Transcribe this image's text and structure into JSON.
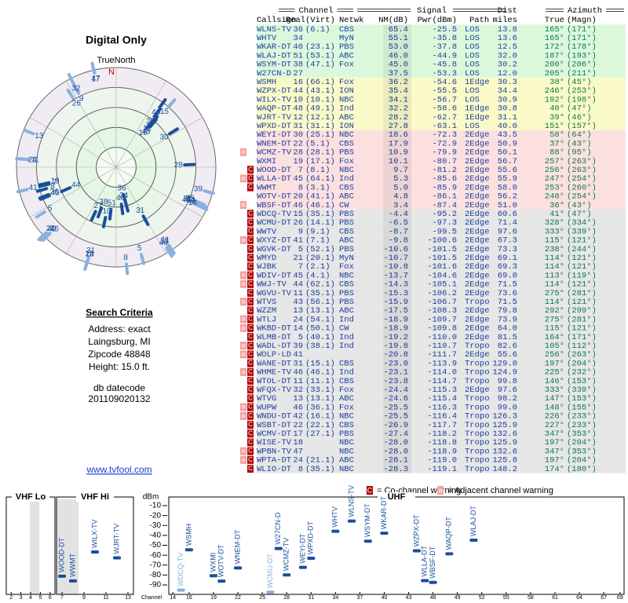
{
  "header": {
    "title": "Digital Only",
    "north_label": "TrueNorth",
    "north_marker": "N"
  },
  "polar": {
    "rlim": [
      110,
      -25
    ]
  },
  "search": {
    "heading": "Search Criteria",
    "lines": [
      "Address: exact",
      "Laingsburg, MI",
      "Zipcode 48848",
      "Height: 15.0 ft."
    ],
    "datecode_label": "db datecode",
    "datecode": "201109020132",
    "link": "www.tvfool.com"
  },
  "table": {
    "group_headers": [
      "Channel",
      "Signal",
      "Azimuth"
    ],
    "dist_top": "Dist",
    "columns": [
      "Callsign",
      "Real",
      "(Virt)",
      "Netwk",
      "NM(dB)",
      "Pwr(dBm)",
      "Path",
      "miles",
      "True",
      "(Magn)"
    ],
    "weak_bg": "#e6e6e6",
    "rows": [
      {
        "warn": [],
        "bg": "#dcf8dc",
        "cells": [
          "WLNS-TV",
          "36",
          "(6.1)",
          "CBS",
          "65.4",
          "-25.5",
          "LOS",
          "13.8",
          "165°",
          "(171°)"
        ]
      },
      {
        "warn": [],
        "bg": "#dcf8dc",
        "cells": [
          "WHTV",
          "34",
          null,
          "MyN",
          "55.1",
          "-35.8",
          "LOS",
          "13.6",
          "165°",
          "(171°)"
        ]
      },
      {
        "warn": [],
        "bg": "#dcf8dc",
        "cells": [
          "WKAR-DT",
          "40",
          "(23.1)",
          "PBS",
          "53.0",
          "-37.8",
          "LOS",
          "12.5",
          "172°",
          "(178°)"
        ]
      },
      {
        "warn": [],
        "bg": "#dcf8dc",
        "cells": [
          "WLAJ-DT",
          "51",
          "(53.1)",
          "ABC",
          "46.0",
          "-44.9",
          "LOS",
          "32.0",
          "187°",
          "(193°)"
        ]
      },
      {
        "warn": [],
        "bg": "#dcf8dc",
        "cells": [
          "WSYM-DT",
          "38",
          "(47.1)",
          "Fox",
          "45.0",
          "-45.8",
          "LOS",
          "30.2",
          "200°",
          "(206°)"
        ]
      },
      {
        "warn": [],
        "bg": "#dcf8dc",
        "cells": [
          "W27CN-D",
          "27",
          null,
          null,
          "37.5",
          "-53.3",
          "LOS",
          "12.0",
          "205°",
          "(211°)"
        ]
      },
      {
        "warn": [],
        "bg": "#fafac8",
        "cells": [
          "WSMH",
          "16",
          "(66.1)",
          "Fox",
          "36.2",
          "-54.6",
          "1Edge",
          "30.3",
          "38°",
          "(45°)"
        ]
      },
      {
        "warn": [],
        "bg": "#fafac8",
        "cells": [
          "WZPX-DT",
          "44",
          "(43.1)",
          "ION",
          "35.4",
          "-55.5",
          "LOS",
          "34.4",
          "246°",
          "(253°)"
        ]
      },
      {
        "warn": [],
        "bg": "#fafac8",
        "cells": [
          "WILX-TV",
          "10",
          "(10.1)",
          "NBC",
          "34.1",
          "-56.7",
          "LOS",
          "30.9",
          "192°",
          "(198°)"
        ]
      },
      {
        "warn": [],
        "bg": "#fafac8",
        "cells": [
          "WAQP-DT",
          "48",
          "(49.1)",
          "Ind",
          "32.2",
          "-58.6",
          "1Edge",
          "30.8",
          "40°",
          "(47°)"
        ]
      },
      {
        "warn": [],
        "bg": "#fafac8",
        "cells": [
          "WJRT-TV",
          "12",
          "(12.1)",
          "ABC",
          "28.2",
          "-62.7",
          "1Edge",
          "31.1",
          "39°",
          "(46°)"
        ]
      },
      {
        "warn": [],
        "bg": "#fafac8",
        "cells": [
          "WPXD-DT",
          "31",
          "(31.1)",
          "ION",
          "27.8",
          "-63.1",
          "LOS",
          "40.0",
          "151°",
          "(157°)"
        ]
      },
      {
        "warn": [],
        "bg": "#fce0e0",
        "cells": [
          "WEYI-DT",
          "30",
          "(25.1)",
          "NBC",
          "18.6",
          "-72.3",
          "2Edge",
          "43.5",
          "58°",
          "(64°)"
        ]
      },
      {
        "warn": [],
        "bg": "#fce0e0",
        "cells": [
          "WNEM-DT",
          "22",
          "(5.1)",
          "CBS",
          "17.9",
          "-72.9",
          "2Edge",
          "50.9",
          "37°",
          "(43°)"
        ]
      },
      {
        "warn": [
          "a"
        ],
        "bg": "#fce0e0",
        "cells": [
          "WCMZ-TV",
          "28",
          "(28.1)",
          "PBS",
          "10.9",
          "-79.9",
          "2Edge",
          "50.1",
          "88°",
          "(95°)"
        ]
      },
      {
        "warn": [],
        "bg": "#fce0e0",
        "cells": [
          "WXMI",
          "19",
          "(17.1)",
          "Fox",
          "10.1",
          "-80.7",
          "2Edge",
          "56.7",
          "257°",
          "(263°)"
        ]
      },
      {
        "warn": [
          "C"
        ],
        "bg": "#fce0e0",
        "cells": [
          "WOOD-DT",
          "7",
          "(8.1)",
          "NBC",
          "9.7",
          "-81.2",
          "2Edge",
          "55.6",
          "256°",
          "(263°)"
        ]
      },
      {
        "warn": [
          "a",
          "C"
        ],
        "bg": "#fce0e0",
        "cells": [
          "WLLA-DT",
          "45",
          "(64.1)",
          "Ind",
          "5.3",
          "-85.6",
          "2Edge",
          "55.9",
          "247°",
          "(254°)"
        ]
      },
      {
        "warn": [
          "C"
        ],
        "bg": "#fce0e0",
        "cells": [
          "WWMT",
          "8",
          "(3.1)",
          "CBS",
          "5.0",
          "-85.9",
          "2Edge",
          "58.0",
          "253°",
          "(260°)"
        ]
      },
      {
        "warn": [],
        "bg": "#fce0e0",
        "cells": [
          "WOTV-DT",
          "20",
          "(41.1)",
          "ABC",
          "4.8",
          "-86.1",
          "2Edge",
          "56.2",
          "248°",
          "(254°)"
        ]
      },
      {
        "warn": [
          "a"
        ],
        "bg": "#fce0e0",
        "cells": [
          "WBSF-DT",
          "46",
          "(46.1)",
          "CW",
          "3.4",
          "-87.4",
          "2Edge",
          "51.0",
          "36°",
          "(43°)"
        ]
      },
      {
        "warn": [
          "C"
        ],
        "bg": "#e6e6e6",
        "cells": [
          "WDCQ-TV",
          "15",
          "(35.1)",
          "PBS",
          "-4.4",
          "-95.2",
          "2Edge",
          "60.6",
          "41°",
          "(47°)"
        ]
      },
      {
        "warn": [
          "C"
        ],
        "bg": "#e6e6e6",
        "cells": [
          "WCMU-DT",
          "26",
          "(14.1)",
          "PBS",
          "-6.5",
          "-97.3",
          "2Edge",
          "71.4",
          "328°",
          "(334°)"
        ]
      },
      {
        "warn": [
          "C"
        ],
        "bg": "#e6e6e6",
        "cells": [
          "WWTV",
          "9",
          "(9.1)",
          "CBS",
          "-8.7",
          "-99.5",
          "2Edge",
          "97.6",
          "333°",
          "(339°)"
        ]
      },
      {
        "warn": [
          "a",
          "C"
        ],
        "bg": "#e6e6e6",
        "cells": [
          "WXYZ-DT",
          "41",
          "(7.1)",
          "ABC",
          "-9.8",
          "-100.6",
          "2Edge",
          "67.3",
          "115°",
          "(121°)"
        ]
      },
      {
        "warn": [
          "C"
        ],
        "bg": "#e6e6e6",
        "cells": [
          "WGVK-DT",
          "5",
          "(52.1)",
          "PBS",
          "-10.6",
          "-101.5",
          "2Edge",
          "73.3",
          "238°",
          "(244°)"
        ]
      },
      {
        "warn": [
          "C"
        ],
        "bg": "#e6e6e6",
        "cells": [
          "WMYD",
          "21",
          "(20.1)",
          "MyN",
          "-10.7",
          "-101.5",
          "2Edge",
          "69.1",
          "114°",
          "(121°)"
        ]
      },
      {
        "warn": [
          "C"
        ],
        "bg": "#e6e6e6",
        "cells": [
          "WJBK",
          "7",
          "(2.1)",
          "Fox",
          "-10.8",
          "-101.6",
          "2Edge",
          "69.3",
          "114°",
          "(121°)"
        ]
      },
      {
        "warn": [
          "a",
          "C"
        ],
        "bg": "#e6e6e6",
        "cells": [
          "WDIV-DT",
          "45",
          "(4.1)",
          "NBC",
          "-13.7",
          "-104.6",
          "2Edge",
          "69.0",
          "113°",
          "(119°)"
        ]
      },
      {
        "warn": [
          "a",
          "C"
        ],
        "bg": "#e6e6e6",
        "cells": [
          "WWJ-TV",
          "44",
          "(62.1)",
          "CBS",
          "-14.3",
          "-105.1",
          "2Edge",
          "71.5",
          "114°",
          "(121°)"
        ]
      },
      {
        "warn": [
          "C"
        ],
        "bg": "#e6e6e6",
        "cells": [
          "WGVU-TV",
          "11",
          "(35.1)",
          "PBS",
          "-15.3",
          "-106.2",
          "2Edge",
          "73.6",
          "275°",
          "(281°)"
        ]
      },
      {
        "warn": [
          "a",
          "C"
        ],
        "bg": "#e6e6e6",
        "cells": [
          "WTVS",
          "43",
          "(56.1)",
          "PBS",
          "-15.9",
          "-106.7",
          "Tropo",
          "71.5",
          "114°",
          "(121°)"
        ]
      },
      {
        "warn": [
          "C"
        ],
        "bg": "#e6e6e6",
        "cells": [
          "WZZM",
          "13",
          "(13.1)",
          "ABC",
          "-17.5",
          "-108.3",
          "2Edge",
          "79.8",
          "292°",
          "(299°)"
        ]
      },
      {
        "warn": [
          "a",
          "C"
        ],
        "bg": "#e6e6e6",
        "cells": [
          "WTLJ",
          "24",
          "(54.1)",
          "Ind",
          "-18.9",
          "-109.7",
          "2Edge",
          "73.9",
          "275°",
          "(281°)"
        ]
      },
      {
        "warn": [
          "a",
          "C"
        ],
        "bg": "#e6e6e6",
        "cells": [
          "WKBD-DT",
          "14",
          "(50.1)",
          "CW",
          "-18.9",
          "-109.8",
          "2Edge",
          "64.0",
          "115°",
          "(121°)"
        ]
      },
      {
        "warn": [
          "C"
        ],
        "bg": "#e6e6e6",
        "cells": [
          "WLMB-DT",
          "5",
          "(40.1)",
          "Ind",
          "-19.2",
          "-110.0",
          "2Edge",
          "81.5",
          "164°",
          "(171°)"
        ]
      },
      {
        "warn": [
          "a",
          "C"
        ],
        "bg": "#e6e6e6",
        "cells": [
          "WADL-DT",
          "39",
          "(38.1)",
          "Ind",
          "-19.8",
          "-110.7",
          "Tropo",
          "82.6",
          "105°",
          "(112°)"
        ]
      },
      {
        "warn": [
          "a",
          "C"
        ],
        "bg": "#e6e6e6",
        "cells": [
          "WOLP-LD",
          "41",
          null,
          null,
          "-20.8",
          "-111.7",
          "2Edge",
          "55.6",
          "256°",
          "(263°)"
        ]
      },
      {
        "warn": [
          "C"
        ],
        "bg": "#e6e6e6",
        "cells": [
          "WANE-DT",
          "31",
          "(15.1)",
          "CBS",
          "-23.0",
          "-113.9",
          "Tropo",
          "129.0",
          "197°",
          "(204°)"
        ]
      },
      {
        "warn": [
          "a",
          "C"
        ],
        "bg": "#e6e6e6",
        "cells": [
          "WHME-TV",
          "46",
          "(46.1)",
          "Ind",
          "-23.1",
          "-114.0",
          "Tropo",
          "124.9",
          "225°",
          "(232°)"
        ]
      },
      {
        "warn": [
          "C"
        ],
        "bg": "#e6e6e6",
        "cells": [
          "WTOL-DT",
          "11",
          "(11.1)",
          "CBS",
          "-23.8",
          "-114.7",
          "Tropo",
          "99.8",
          "146°",
          "(153°)"
        ]
      },
      {
        "warn": [
          "C"
        ],
        "bg": "#e6e6e6",
        "cells": [
          "WFQX-TV",
          "32",
          "(33.1)",
          "Fox",
          "-24.4",
          "-115.3",
          "2Edge",
          "97.6",
          "333°",
          "(339°)"
        ]
      },
      {
        "warn": [
          "C"
        ],
        "bg": "#e6e6e6",
        "cells": [
          "WTVG",
          "13",
          "(13.1)",
          "ABC",
          "-24.6",
          "-115.4",
          "Tropo",
          "98.2",
          "147°",
          "(153°)"
        ]
      },
      {
        "warn": [
          "a",
          "C"
        ],
        "bg": "#e6e6e6",
        "cells": [
          "WUPW",
          "46",
          "(36.1)",
          "Fox",
          "-25.5",
          "-116.3",
          "Tropo",
          "99.0",
          "148°",
          "(155°)"
        ]
      },
      {
        "warn": [
          "a",
          "C"
        ],
        "bg": "#e6e6e6",
        "cells": [
          "WNDU-DT",
          "42",
          "(16.1)",
          "NBC",
          "-25.5",
          "-116.4",
          "Tropo",
          "126.3",
          "226°",
          "(233°)"
        ]
      },
      {
        "warn": [
          "C"
        ],
        "bg": "#e6e6e6",
        "cells": [
          "WSBT-DT",
          "22",
          "(22.1)",
          "CBS",
          "-26.9",
          "-117.7",
          "Tropo",
          "125.9",
          "227°",
          "(233°)"
        ]
      },
      {
        "warn": [
          "C"
        ],
        "bg": "#e6e6e6",
        "cells": [
          "WCMV-DT",
          "17",
          "(27.1)",
          "PBS",
          "-27.4",
          "-118.2",
          "Tropo",
          "132.6",
          "347°",
          "(353°)"
        ]
      },
      {
        "warn": [
          "C"
        ],
        "bg": "#e6e6e6",
        "cells": [
          "WISE-TV",
          "18",
          null,
          "NBC",
          "-28.0",
          "-118.8",
          "Tropo",
          "125.9",
          "197°",
          "(204°)"
        ]
      },
      {
        "warn": [
          "a",
          "C"
        ],
        "bg": "#e6e6e6",
        "cells": [
          "WPBN-TV",
          "47",
          null,
          "NBC",
          "-28.0",
          "-118.9",
          "Tropo",
          "132.6",
          "347°",
          "(353°)"
        ]
      },
      {
        "warn": [
          "a",
          "C"
        ],
        "bg": "#e6e6e6",
        "cells": [
          "WPTA-DT",
          "24",
          "(21.1)",
          "ABC",
          "-28.1",
          "-119.0",
          "Tropo",
          "125.8",
          "197°",
          "(204°)"
        ]
      },
      {
        "warn": [
          "C"
        ],
        "bg": "#e6e6e6",
        "cells": [
          "WLIO-DT",
          "8",
          "(35.1)",
          "NBC",
          "-28.3",
          "-119.1",
          "Tropo",
          "148.2",
          "174°",
          "(180°)"
        ]
      }
    ]
  },
  "legend": {
    "co_symbol": "C",
    "co_text": "= Co-channel warning",
    "adj_symbol": "a",
    "adj_text": "= Adjacent channel warning"
  },
  "spectrum": {
    "y_label": "dBm",
    "x_label": "Channel",
    "ylim": [
      -98,
      -2
    ],
    "yticks": [
      -10,
      -20,
      -30,
      -40,
      -50,
      -60,
      -70,
      -80,
      -90
    ],
    "colors": {
      "strong": "#1a4f9c",
      "weak": "#8ab0e0"
    },
    "panels": [
      {
        "name": "VHF Lo",
        "xlim": [
          1.5,
          6.5
        ],
        "xticks": [
          2,
          3,
          4,
          5,
          6
        ]
      },
      {
        "name": "VHF Hi",
        "xlim": [
          6.5,
          13.5
        ],
        "xticks": [
          7,
          9,
          11,
          13
        ]
      },
      {
        "name": "UHF",
        "xlim": [
          13.5,
          69.5
        ],
        "xticks": [
          14,
          16,
          19,
          22,
          25,
          28,
          31,
          34,
          37,
          40,
          43,
          46,
          49,
          52,
          55,
          58,
          61,
          64,
          67,
          69
        ]
      }
    ]
  }
}
